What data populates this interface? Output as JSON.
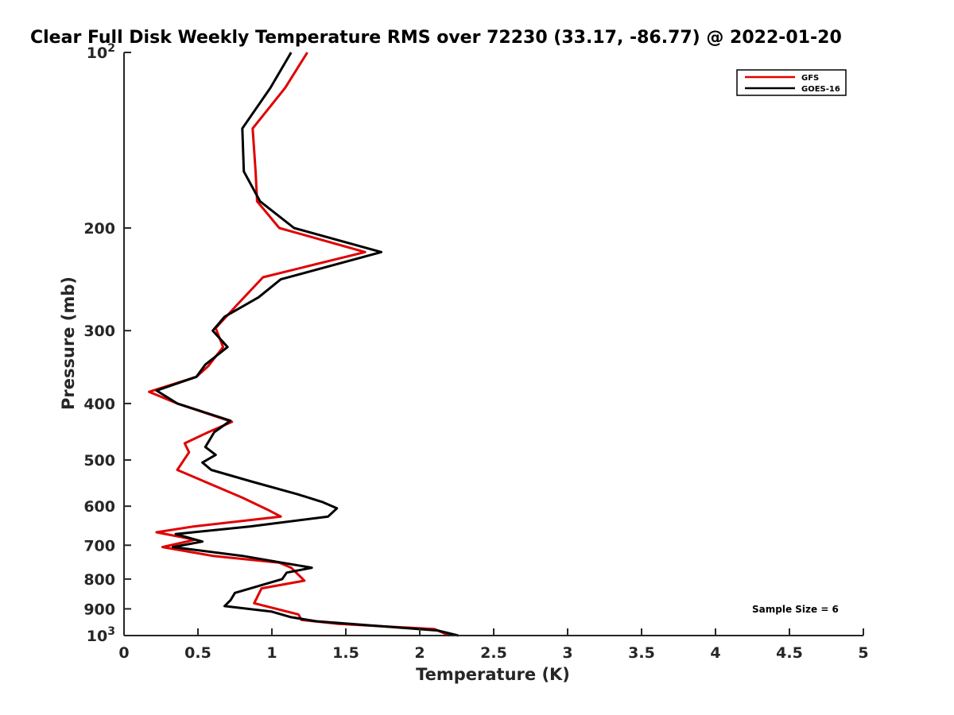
{
  "chart_data": {
    "type": "line",
    "title": "Clear Full Disk Weekly Temperature RMS over 72230 (33.17, -86.77) @ 2022-01-20",
    "xlabel": "Temperature (K)",
    "ylabel": "Pressure (mb)",
    "xlim": [
      0,
      5
    ],
    "ylim": [
      100,
      1000
    ],
    "y_scale": "log",
    "y_reversed": true,
    "grid": false,
    "legend_position": "top-right",
    "x_ticks": [
      "0",
      "0.5",
      "1",
      "1.5",
      "2",
      "2.5",
      "3",
      "3.5",
      "4",
      "4.5",
      "5"
    ],
    "y_ticks": [
      {
        "value": 100,
        "base": "10",
        "exp": "2"
      },
      {
        "value": 200,
        "label": "200"
      },
      {
        "value": 300,
        "label": "300"
      },
      {
        "value": 400,
        "label": "400"
      },
      {
        "value": 500,
        "label": "500"
      },
      {
        "value": 600,
        "label": "600"
      },
      {
        "value": 700,
        "label": "700"
      },
      {
        "value": 800,
        "label": "800"
      },
      {
        "value": 900,
        "label": "900"
      },
      {
        "value": 1000,
        "base": "10",
        "exp": "3"
      }
    ],
    "annotation": "Sample Size = 6",
    "series": [
      {
        "name": "GFS",
        "color": "#e00000",
        "points": [
          [
            1.24,
            100
          ],
          [
            1.09,
            115
          ],
          [
            0.87,
            135
          ],
          [
            0.89,
            160
          ],
          [
            0.9,
            180
          ],
          [
            1.05,
            200
          ],
          [
            1.63,
            220
          ],
          [
            0.94,
            243
          ],
          [
            0.77,
            270
          ],
          [
            0.62,
            297
          ],
          [
            0.67,
            320
          ],
          [
            0.57,
            345
          ],
          [
            0.49,
            360
          ],
          [
            0.17,
            382
          ],
          [
            0.36,
            400
          ],
          [
            0.73,
            430
          ],
          [
            0.57,
            448
          ],
          [
            0.41,
            468
          ],
          [
            0.44,
            485
          ],
          [
            0.36,
            520
          ],
          [
            0.8,
            580
          ],
          [
            0.98,
            610
          ],
          [
            1.06,
            625
          ],
          [
            0.47,
            650
          ],
          [
            0.22,
            665
          ],
          [
            0.48,
            685
          ],
          [
            0.26,
            705
          ],
          [
            0.6,
            730
          ],
          [
            1.05,
            750
          ],
          [
            1.13,
            765
          ],
          [
            1.22,
            805
          ],
          [
            0.93,
            830
          ],
          [
            0.88,
            880
          ],
          [
            1.18,
            920
          ],
          [
            1.2,
            940
          ],
          [
            1.45,
            955
          ],
          [
            2.1,
            975
          ],
          [
            2.2,
            1000
          ]
        ]
      },
      {
        "name": "GOES-16",
        "color": "#000000",
        "points": [
          [
            1.13,
            100
          ],
          [
            0.99,
            115
          ],
          [
            0.8,
            135
          ],
          [
            0.81,
            160
          ],
          [
            0.92,
            180
          ],
          [
            1.15,
            200
          ],
          [
            1.74,
            220
          ],
          [
            1.06,
            245
          ],
          [
            0.91,
            263
          ],
          [
            0.68,
            284
          ],
          [
            0.6,
            300
          ],
          [
            0.7,
            320
          ],
          [
            0.55,
            343
          ],
          [
            0.49,
            360
          ],
          [
            0.22,
            380
          ],
          [
            0.36,
            400
          ],
          [
            0.72,
            428
          ],
          [
            0.61,
            448
          ],
          [
            0.55,
            475
          ],
          [
            0.62,
            490
          ],
          [
            0.53,
            505
          ],
          [
            0.59,
            520
          ],
          [
            0.87,
            545
          ],
          [
            1.17,
            572
          ],
          [
            1.34,
            590
          ],
          [
            1.44,
            605
          ],
          [
            1.38,
            625
          ],
          [
            0.85,
            650
          ],
          [
            0.35,
            670
          ],
          [
            0.53,
            690
          ],
          [
            0.33,
            705
          ],
          [
            0.8,
            730
          ],
          [
            1.07,
            750
          ],
          [
            1.27,
            765
          ],
          [
            1.1,
            780
          ],
          [
            1.07,
            800
          ],
          [
            0.75,
            845
          ],
          [
            0.72,
            870
          ],
          [
            0.68,
            890
          ],
          [
            1.0,
            910
          ],
          [
            1.13,
            930
          ],
          [
            1.3,
            945
          ],
          [
            2.12,
            980
          ],
          [
            2.26,
            1000
          ]
        ]
      }
    ]
  }
}
